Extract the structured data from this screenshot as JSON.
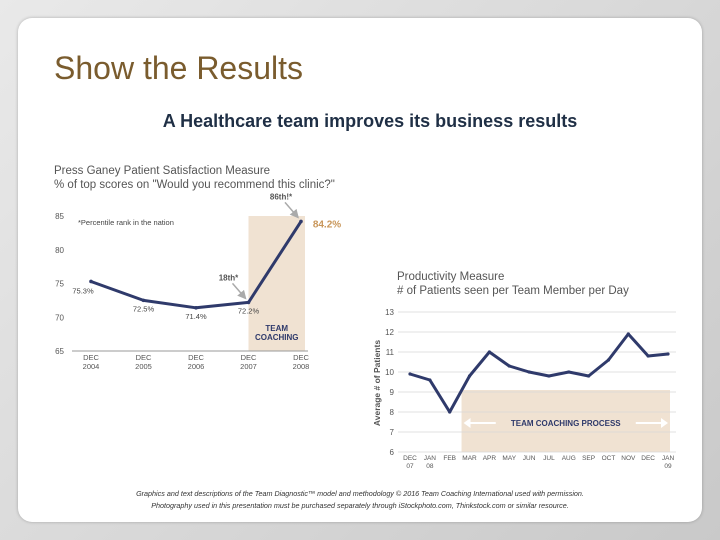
{
  "slide": {
    "title": "Show the Results",
    "heading": "A Healthcare team improves its business results",
    "caption_line1": "Graphics and text descriptions of the Team Diagnostic™ model and methodology © 2016 Team Coaching International used with permission.",
    "caption_line2": "Photography used in this presentation must be purchased separately through iStockphoto.com, Thinkstock.com or similar resource."
  },
  "colors": {
    "title": "#7a5c2e",
    "heading": "#1f2f45",
    "line": "#2f3a6b",
    "highlight": "#f0e2d2",
    "accent": "#c8965a",
    "gridline": "#d9d9d9"
  },
  "chart_data": [
    {
      "type": "line",
      "title": "Press Ganey Patient Satisfaction Measure",
      "subtitle": "% of top scores on \"Would you recommend this clinic?\"",
      "note": "*Percentile rank in the nation",
      "categories": [
        "DEC 2004",
        "DEC 2005",
        "DEC 2006",
        "DEC 2007",
        "DEC 2008"
      ],
      "category_lines": [
        [
          "DEC",
          "2004"
        ],
        [
          "DEC",
          "2005"
        ],
        [
          "DEC",
          "2006"
        ],
        [
          "DEC",
          "2007"
        ],
        [
          "DEC",
          "2008"
        ]
      ],
      "x": [
        0,
        1,
        2,
        3,
        4
      ],
      "values": [
        75.3,
        72.5,
        71.4,
        72.2,
        84.2
      ],
      "point_labels": [
        "75.3%",
        "72.5%",
        "71.4%",
        "72.2%",
        "84.2%"
      ],
      "ylim": [
        65,
        85
      ],
      "yticks": [
        65,
        70,
        75,
        80,
        85
      ],
      "grid": false,
      "shaded_region_label": [
        "TEAM",
        "COACHING"
      ],
      "annotations": [
        {
          "text": "18th*",
          "at_index": 3
        },
        {
          "text": "86th!*",
          "at_index": 4
        }
      ]
    },
    {
      "type": "line",
      "title": "Productivity Measure",
      "subtitle": "# of Patients seen per Team Member per Day",
      "ylabel": "Average # of Patients",
      "categories": [
        "DEC 07",
        "JAN 08",
        "FEB",
        "MAR",
        "APR",
        "MAY",
        "JUN",
        "JUL",
        "AUG",
        "SEP",
        "OCT",
        "NOV",
        "DEC",
        "JAN 09"
      ],
      "category_lines": [
        [
          "DEC",
          "07"
        ],
        [
          "JAN",
          "08"
        ],
        [
          "FEB"
        ],
        [
          "MAR"
        ],
        [
          "APR"
        ],
        [
          "MAY"
        ],
        [
          "JUN"
        ],
        [
          "JUL"
        ],
        [
          "AUG"
        ],
        [
          "SEP"
        ],
        [
          "OCT"
        ],
        [
          "NOV"
        ],
        [
          "DEC"
        ],
        [
          "JAN",
          "09"
        ]
      ],
      "values": [
        9.9,
        9.6,
        8.0,
        9.8,
        11.0,
        10.3,
        10.0,
        9.8,
        10.0,
        9.8,
        10.6,
        11.9,
        10.8,
        10.9
      ],
      "ylim": [
        6,
        13
      ],
      "yticks": [
        6,
        7,
        8,
        9,
        10,
        11,
        12,
        13
      ],
      "grid": true,
      "shaded_region_label": "TEAM COACHING PROCESS"
    }
  ]
}
